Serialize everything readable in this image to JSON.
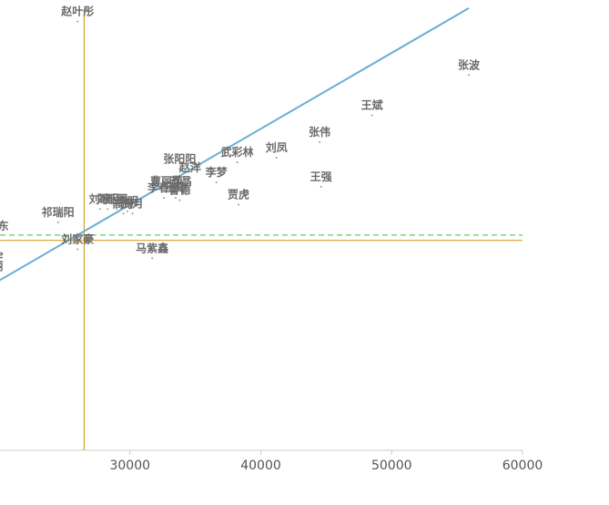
{
  "chart_data": {
    "type": "scatter",
    "title": "",
    "xlabel": "",
    "ylabel": "",
    "xlim": [
      20000,
      60000
    ],
    "ylim": [
      0,
      100
    ],
    "x_ticks": [
      30000,
      40000,
      50000,
      60000
    ],
    "x_tick_labels": [
      "30000",
      "40000",
      "50000",
      "60000"
    ],
    "points": [
      {
        "name": "赵叶彤",
        "x": 26000,
        "y": 96
      },
      {
        "name": "张波",
        "x": 55900,
        "y": 84
      },
      {
        "name": "王斌",
        "x": 48500,
        "y": 75
      },
      {
        "name": "张伟",
        "x": 44500,
        "y": 69
      },
      {
        "name": "刘凤",
        "x": 41200,
        "y": 65.5
      },
      {
        "name": "武彩林",
        "x": 38200,
        "y": 64.5
      },
      {
        "name": "张阳阳",
        "x": 33800,
        "y": 63
      },
      {
        "name": "李梦",
        "x": 36600,
        "y": 60
      },
      {
        "name": "赵洋",
        "x": 34600,
        "y": 61
      },
      {
        "name": "王强",
        "x": 44600,
        "y": 59
      },
      {
        "name": "曹丽萍",
        "x": 32800,
        "y": 58
      },
      {
        "name": "苏晶",
        "x": 33900,
        "y": 58
      },
      {
        "name": "李春宇",
        "x": 32600,
        "y": 56.5
      },
      {
        "name": "王婷",
        "x": 33500,
        "y": 56.5
      },
      {
        "name": "曹德",
        "x": 33800,
        "y": 56
      },
      {
        "name": "贾虎",
        "x": 38300,
        "y": 55
      },
      {
        "name": "刘歌",
        "x": 27700,
        "y": 54
      },
      {
        "name": "刘明",
        "x": 28300,
        "y": 54
      },
      {
        "name": "王国",
        "x": 29000,
        "y": 54
      },
      {
        "name": "李明",
        "x": 29800,
        "y": 53.5
      },
      {
        "name": "高丹",
        "x": 29500,
        "y": 53
      },
      {
        "name": "周月",
        "x": 30200,
        "y": 53
      },
      {
        "name": "祁瑞阳",
        "x": 24500,
        "y": 51
      },
      {
        "name": "刘家豪",
        "x": 26000,
        "y": 45
      },
      {
        "name": "马紫鑫",
        "x": 31700,
        "y": 43
      },
      {
        "name": "刘东",
        "x": 19900,
        "y": 48
      },
      {
        "name": "宇",
        "x": 19900,
        "y": 41
      },
      {
        "name": "丽",
        "x": 19900,
        "y": 39
      }
    ],
    "trendline": {
      "from": [
        20000,
        38
      ],
      "to": [
        55900,
        99
      ]
    },
    "reference_lines": {
      "vertical_x": 26500,
      "horizontal_y": 47,
      "dashed_y": 48.2
    },
    "colors": {
      "trendline": "#6aaed6",
      "reference": "#d4a02a",
      "dashed": "#3fbf3f",
      "label": "#6b6b6b",
      "axis": "#cccccc"
    },
    "grid": false,
    "legend": "none"
  }
}
